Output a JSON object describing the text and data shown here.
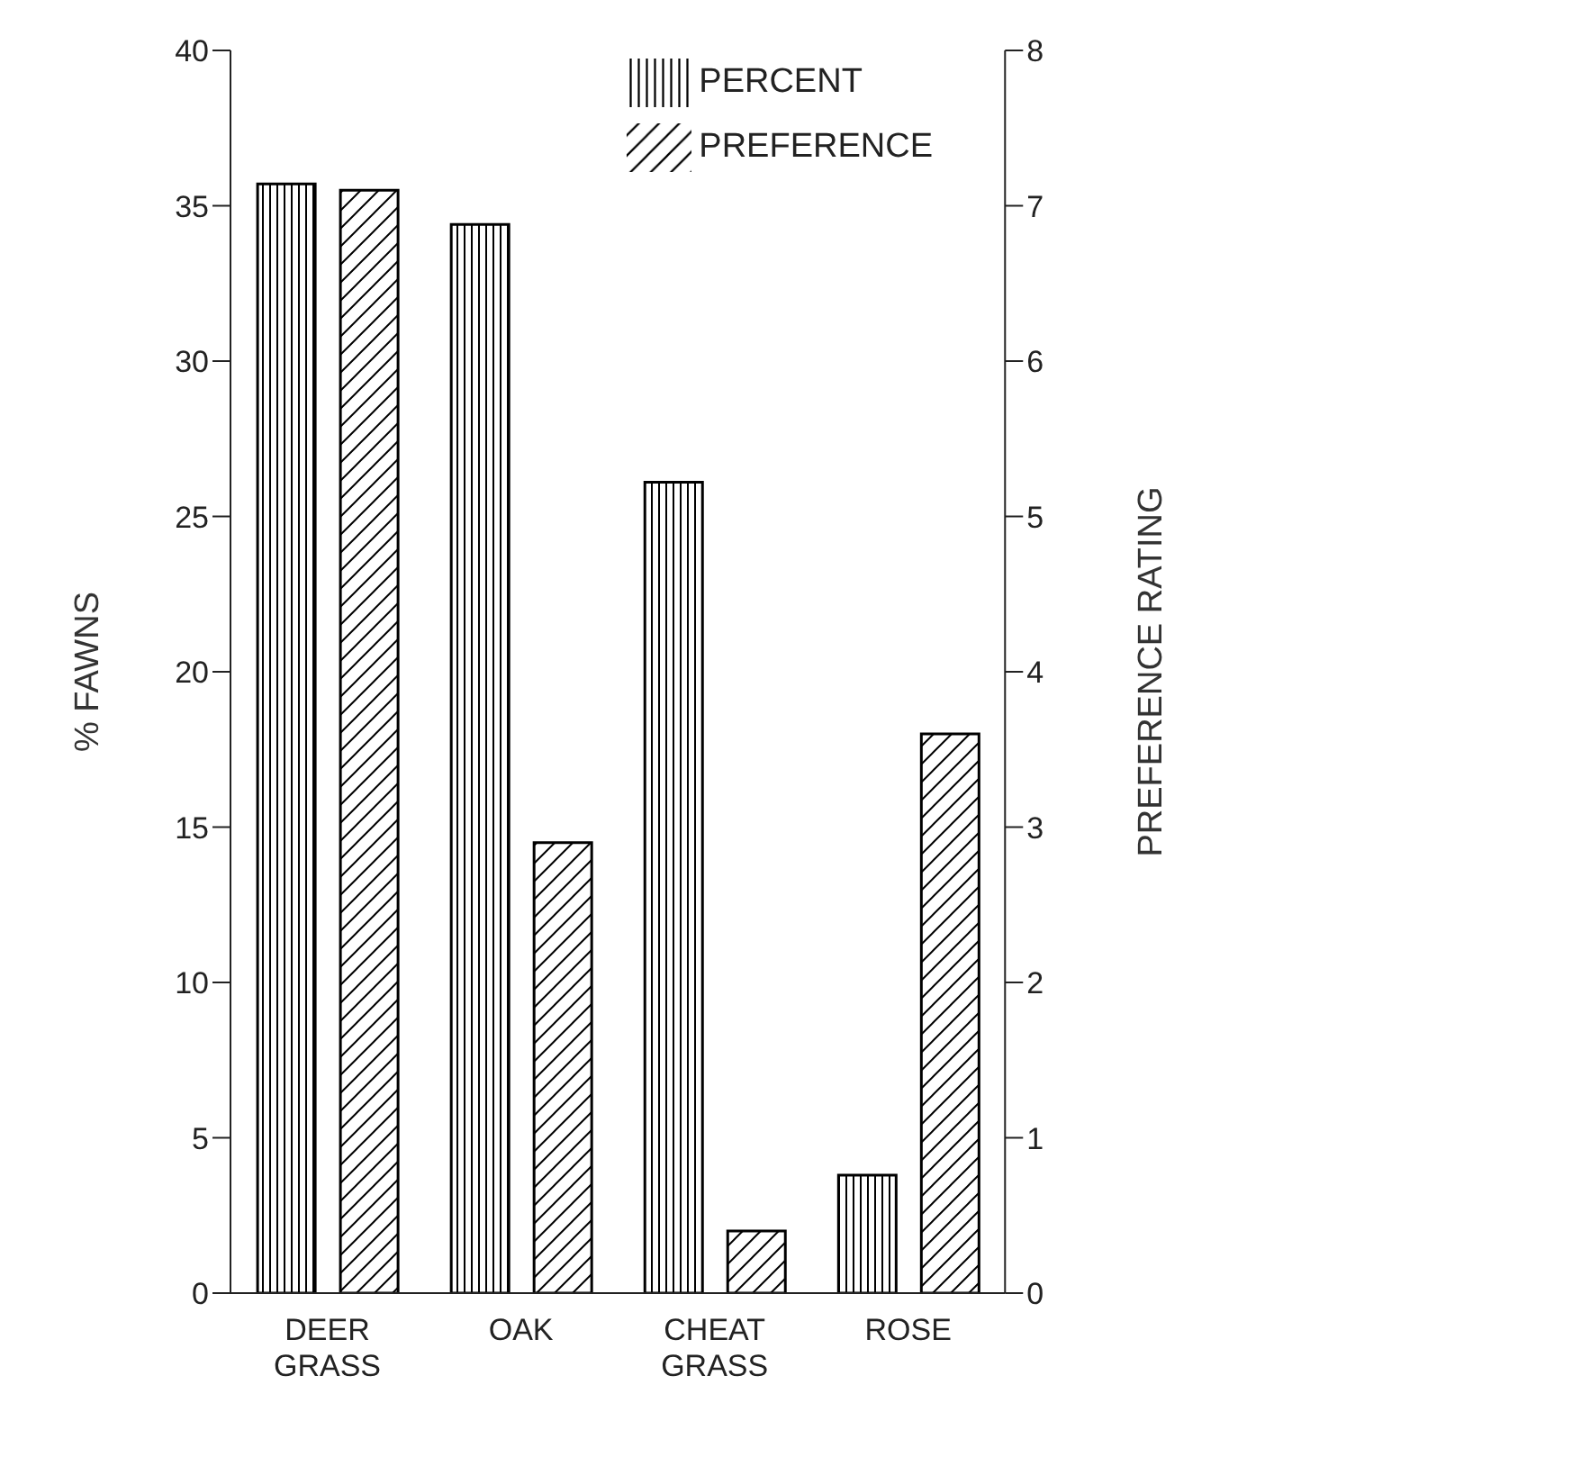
{
  "chart_data": {
    "type": "bar",
    "categories": [
      "DEER GRASS",
      "OAK",
      "CHEAT GRASS",
      "ROSE"
    ],
    "series": [
      {
        "name": "PERCENT",
        "color": "#000000",
        "values": [
          35.7,
          34.4,
          26.1,
          3.8
        ]
      },
      {
        "name": "PREFERENCE",
        "color": "#000000",
        "values": [
          7.1,
          2.9,
          0.4,
          3.6
        ],
        "axis": "y2"
      }
    ],
    "ylabel": "% FAWNS",
    "y2label": "PREFERENCE RATING",
    "ylim": [
      0,
      40
    ],
    "yticks": [
      0,
      5,
      10,
      15,
      20,
      25,
      30,
      35,
      40
    ],
    "y2lim": [
      0,
      8
    ],
    "y2ticks": [
      0,
      1,
      2,
      3,
      4,
      5,
      6,
      7,
      8
    ],
    "legend": "top right",
    "grid": false
  }
}
